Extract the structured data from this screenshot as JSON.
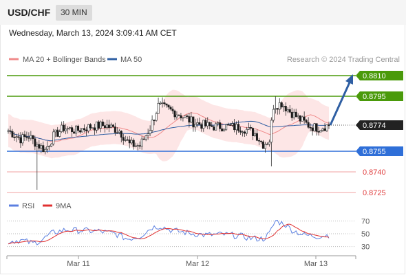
{
  "header": {
    "symbol": "USD/CHF",
    "timeframe": "30 MIN",
    "datetime": "Wednesday, March 13, 2024 3:09:41 AM CET"
  },
  "legend": [
    {
      "label": "MA 20 + Bollinger Bands",
      "color": "#f08a8a"
    },
    {
      "label": "MA 50",
      "color": "#2f5fa3"
    }
  ],
  "credit": "Research © 2024 Trading Central",
  "colors": {
    "resistance": "#4a9a0a",
    "support": "#2f6fd8",
    "lower": "#f0a0a0",
    "arrow": "#2f5fa3",
    "current": "#222222",
    "bollinger_fill": "#fde0e0",
    "ma20": "#f08a8a",
    "ma50": "#2f5fa3",
    "rsi": "#5b7fe0",
    "rsi_ma": "#e03030"
  },
  "chart_data": [
    {
      "type": "candlestick",
      "title": "USD/CHF",
      "ylim": [
        0.8722,
        0.8815
      ],
      "x_ticks": [
        "Mar 11",
        "Mar 12",
        "Mar 13"
      ],
      "levels": [
        {
          "value": 0.881,
          "label": "0.8810",
          "kind": "resistance"
        },
        {
          "value": 0.8795,
          "label": "0.8795",
          "kind": "resistance"
        },
        {
          "value": 0.8774,
          "label": "0.8774",
          "kind": "current"
        },
        {
          "value": 0.8755,
          "label": "0.8755",
          "kind": "support"
        },
        {
          "value": 0.874,
          "label": "0.8740",
          "kind": "lower"
        },
        {
          "value": 0.8725,
          "label": "0.8725",
          "kind": "lower"
        }
      ],
      "projection": {
        "from": 0.8774,
        "to": 0.881
      },
      "segments": [
        [
          0,
          0.877
        ],
        [
          6,
          0.8764
        ],
        [
          10,
          0.8766
        ],
        [
          14,
          0.876
        ],
        [
          18,
          0.8756
        ],
        [
          22,
          0.8766
        ],
        [
          27,
          0.8772
        ],
        [
          33,
          0.877
        ],
        [
          40,
          0.8773
        ],
        [
          47,
          0.8774
        ],
        [
          54,
          0.877
        ],
        [
          59,
          0.876
        ],
        [
          64,
          0.8759
        ],
        [
          69,
          0.8772
        ],
        [
          73,
          0.8788
        ],
        [
          77,
          0.8786
        ],
        [
          83,
          0.8782
        ],
        [
          90,
          0.8776
        ],
        [
          98,
          0.8773
        ],
        [
          106,
          0.8773
        ],
        [
          114,
          0.8772
        ],
        [
          120,
          0.8768
        ],
        [
          124,
          0.876
        ],
        [
          127,
          0.8763
        ],
        [
          129,
          0.8788
        ],
        [
          133,
          0.879
        ],
        [
          137,
          0.8784
        ],
        [
          142,
          0.8778
        ],
        [
          147,
          0.8773
        ],
        [
          151,
          0.8772
        ],
        [
          156,
          0.8774
        ]
      ],
      "events": [
        {
          "i": 14,
          "low": 0.8727,
          "high": 0.8762
        },
        {
          "i": 128,
          "low": 0.8744,
          "high": 0.8776
        },
        {
          "i": 73,
          "high": 0.8794
        },
        {
          "i": 130,
          "high": 0.8795
        }
      ]
    },
    {
      "type": "line",
      "title": "RSI",
      "legend": [
        {
          "label": "RSI",
          "color": "#5b7fe0"
        },
        {
          "label": "9MA",
          "color": "#e03030"
        }
      ],
      "ylim": [
        20,
        80
      ],
      "y_ticks": [
        "70",
        "50",
        "30"
      ],
      "y_tick_values": [
        70,
        50,
        30
      ],
      "segments": [
        [
          0,
          38
        ],
        [
          6,
          40
        ],
        [
          12,
          35
        ],
        [
          16,
          40
        ],
        [
          22,
          52
        ],
        [
          28,
          56
        ],
        [
          36,
          55
        ],
        [
          44,
          54
        ],
        [
          52,
          50
        ],
        [
          58,
          42
        ],
        [
          64,
          46
        ],
        [
          70,
          60
        ],
        [
          74,
          62
        ],
        [
          80,
          55
        ],
        [
          88,
          51
        ],
        [
          96,
          48
        ],
        [
          104,
          49
        ],
        [
          112,
          47
        ],
        [
          118,
          43
        ],
        [
          124,
          42
        ],
        [
          127,
          50
        ],
        [
          130,
          70
        ],
        [
          134,
          66
        ],
        [
          138,
          56
        ],
        [
          144,
          48
        ],
        [
          150,
          46
        ],
        [
          156,
          48
        ]
      ]
    }
  ]
}
